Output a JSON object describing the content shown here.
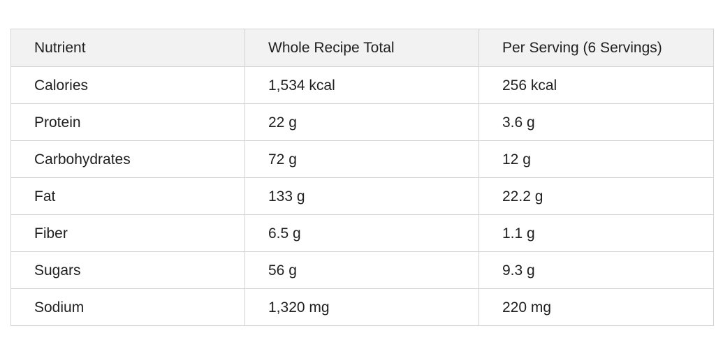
{
  "table": {
    "columns": [
      "Nutrient",
      "Whole Recipe Total",
      "Per Serving (6 Servings)"
    ],
    "rows": [
      [
        "Calories",
        "1,534 kcal",
        "256 kcal"
      ],
      [
        "Protein",
        "22 g",
        "3.6 g"
      ],
      [
        "Carbohydrates",
        "72 g",
        "12 g"
      ],
      [
        "Fat",
        "133 g",
        "22.2 g"
      ],
      [
        "Fiber",
        "6.5 g",
        "1.1 g"
      ],
      [
        "Sugars",
        "56 g",
        "9.3 g"
      ],
      [
        "Sodium",
        "1,320 mg",
        "220 mg"
      ]
    ]
  }
}
